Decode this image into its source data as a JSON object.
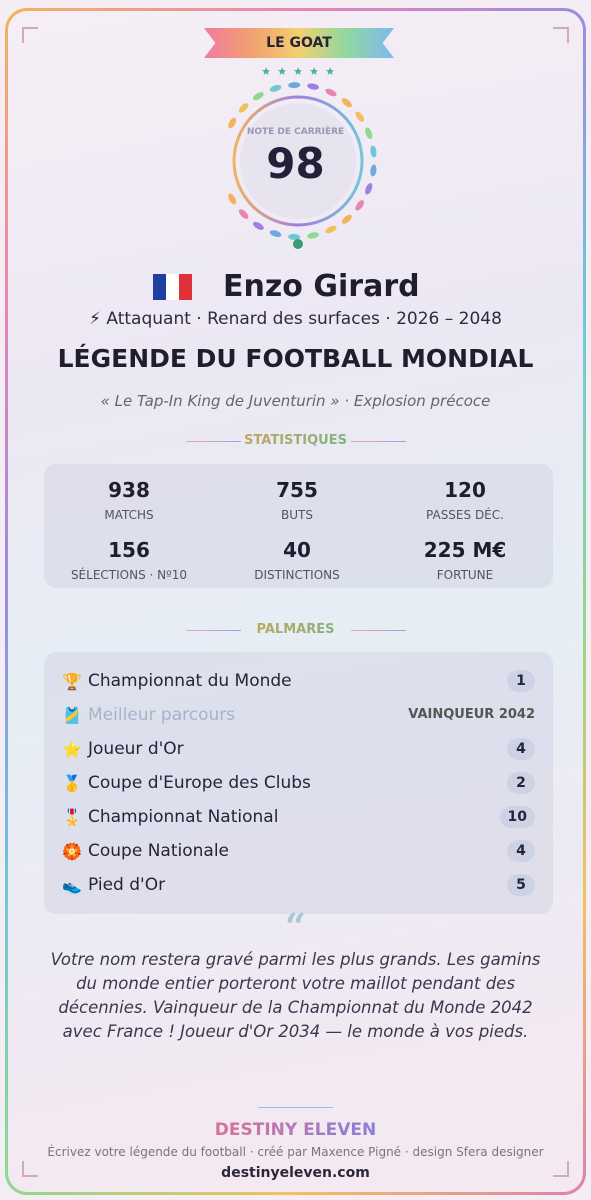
{
  "badge": "LE GOAT",
  "rating": {
    "label": "NOTE DE CARRIÈRE",
    "value": "98"
  },
  "player": {
    "name": "Enzo Girard",
    "subtitle": "⚡ Attaquant · Renard des surfaces · 2026 – 2048",
    "headline": "LÉGENDE DU FOOTBALL MONDIAL",
    "tagline": "« Le Tap-In King de Juventurin » · Explosion précoce"
  },
  "stats": {
    "title": "STATISTIQUES",
    "items": [
      {
        "value": "938",
        "label": "MATCHS"
      },
      {
        "value": "755",
        "label": "BUTS"
      },
      {
        "value": "120",
        "label": "PASSES DÉC."
      },
      {
        "value": "156",
        "label": "SÉLECTIONS · Nº10"
      },
      {
        "value": "40",
        "label": "DISTINCTIONS"
      },
      {
        "value": "225 M€",
        "label": "FORTUNE"
      }
    ]
  },
  "palmares": {
    "title": "PALMARÈS",
    "items": [
      {
        "icon": "🏆",
        "name": "Championnat du Monde",
        "count": "1"
      },
      {
        "icon": "🎽",
        "name": "Meilleur parcours",
        "count": "VAINQUEUR 2042"
      },
      {
        "icon": "⭐",
        "name": "Joueur d'Or",
        "count": "4"
      },
      {
        "icon": "🥇",
        "name": "Coupe d'Europe des Clubs",
        "count": "2"
      },
      {
        "icon": "🎖️",
        "name": "Championnat National",
        "count": "10"
      },
      {
        "icon": "🏵️",
        "name": "Coupe Nationale",
        "count": "4"
      },
      {
        "icon": "👟",
        "name": "Pied d'Or",
        "count": "5"
      }
    ]
  },
  "quote": {
    "mark": "“",
    "text": "Votre nom restera gravé parmi les plus grands. Les gamins du monde entier porteront votre maillot pendant des décennies. Vainqueur de la Championnat du Monde 2042 avec France ! Joueur d'Or 2034 — le monde à vos pieds."
  },
  "footer": {
    "brand": "DESTINY ELEVEN",
    "credit": "Écrivez votre légende du football · créé par Maxence Pigné · design Sfera designer",
    "url": "destinyeleven.com"
  }
}
